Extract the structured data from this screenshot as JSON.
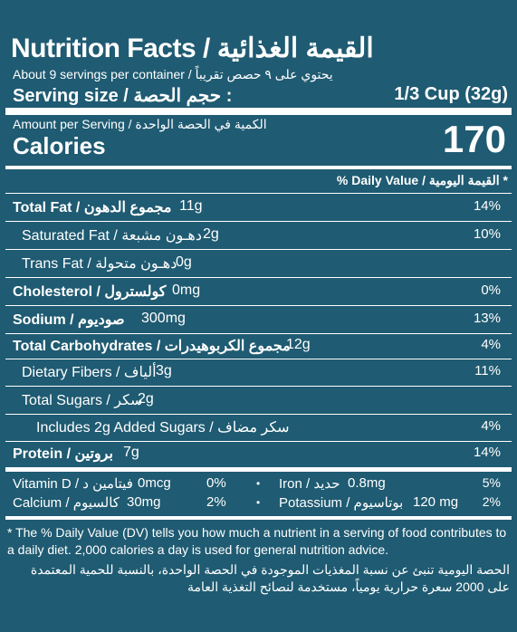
{
  "header": {
    "title": "Nutrition Facts / القيمة الغذائية",
    "servings": "About 9 servings per container / يحتوي على ٩ حصص تقريباً",
    "serving_size_label": "Serving size / حجم الحصة :",
    "serving_size_value": "1/3 Cup (32g)"
  },
  "calories": {
    "amount_per_serving": "Amount per Serving / الكمية في الحصة الواحدة",
    "label": "Calories",
    "value": "170"
  },
  "daily_value_header": "% Daily Value / القيمة اليومية *",
  "nutrients": [
    {
      "label": "Total Fat / مجموع الدهون",
      "amount": "11g",
      "dv": "14%"
    },
    {
      "label": "Saturated Fat / دهـون مشبعة",
      "amount": "2g",
      "dv": "10%"
    },
    {
      "label": "Trans Fat / دهـون متحولة",
      "amount": "0g",
      "dv": ""
    },
    {
      "label": "Cholesterol / كولسترول",
      "amount": "0mg",
      "dv": "0%"
    },
    {
      "label": "Sodium / صوديوم",
      "amount": "300mg",
      "dv": "13%"
    },
    {
      "label": "Total Carbohydrates / مجموع الكربوهيدرات",
      "amount": "12g",
      "dv": "4%"
    },
    {
      "label": "Dietary Fibers / ألياف",
      "amount": "3g",
      "dv": "11%"
    },
    {
      "label": "Total Sugars / سكر",
      "amount": "2g",
      "dv": ""
    },
    {
      "label": "Includes 2g Added Sugars / سكر مضاف",
      "amount": "",
      "dv": "4%"
    },
    {
      "label": "Protein / بروتين",
      "amount": "7g",
      "dv": "14%"
    }
  ],
  "vitamins": [
    {
      "label": "Vitamin D / فيتامين د",
      "amount": "0mcg",
      "dv": "0%"
    },
    {
      "label": "Iron / حديد",
      "amount": "0.8mg",
      "dv": "5%"
    },
    {
      "label": "Calcium / كالسيوم",
      "amount": "30mg",
      "dv": "2%"
    },
    {
      "label": "Potassium / بوتاسيوم",
      "amount": "120 mg",
      "dv": "2%"
    }
  ],
  "bullet": "•",
  "footnote": {
    "english": "* The % Daily Value (DV) tells you how much a nutrient in a serving of food contributes to a daily diet. 2,000 calories a day is used for general nutrition advice.",
    "arabic": "الحصة اليومية تنبئ عن نسبة المغذيات الموجودة في الحصة الواحدة، بالنسبة للحمية المعتمدة على 2000 سعرة حرارية يومياً، مستخدمة لنصائح التغذية العامة"
  }
}
